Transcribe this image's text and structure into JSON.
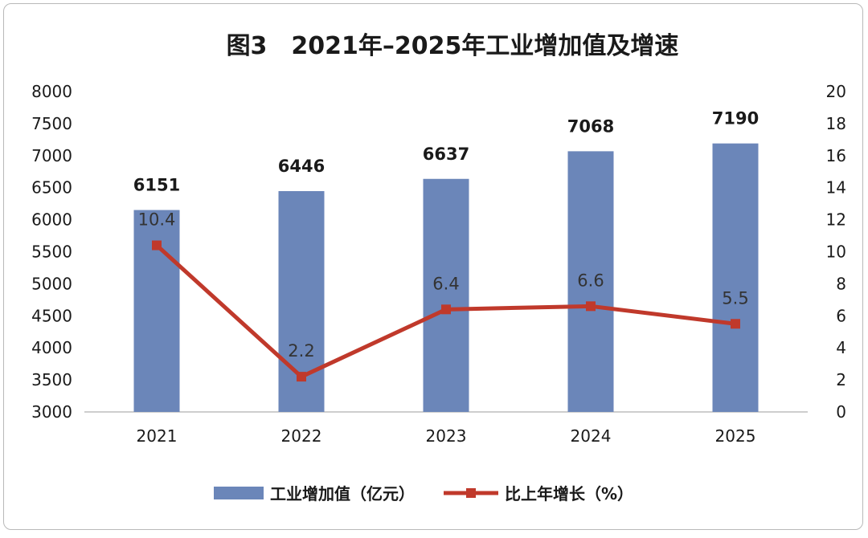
{
  "chart_data": {
    "type": "bar",
    "title": "图3　2021年–2025年工业增加值及增速",
    "categories": [
      "2021",
      "2022",
      "2023",
      "2024",
      "2025"
    ],
    "series": [
      {
        "name": "工业增加值（亿元）",
        "type": "bar",
        "axis": "left",
        "values": [
          6151,
          6446,
          6637,
          7068,
          7190
        ],
        "color": "#6b86b9"
      },
      {
        "name": "比上年增长（%）",
        "type": "line",
        "axis": "right",
        "values": [
          10.4,
          2.2,
          6.4,
          6.6,
          5.5
        ],
        "color": "#c0392b"
      }
    ],
    "y_left": {
      "min": 3000,
      "max": 8000,
      "step": 500
    },
    "y_right": {
      "min": 0,
      "max": 20,
      "step": 2
    },
    "grid": false,
    "legend_position": "bottom"
  }
}
